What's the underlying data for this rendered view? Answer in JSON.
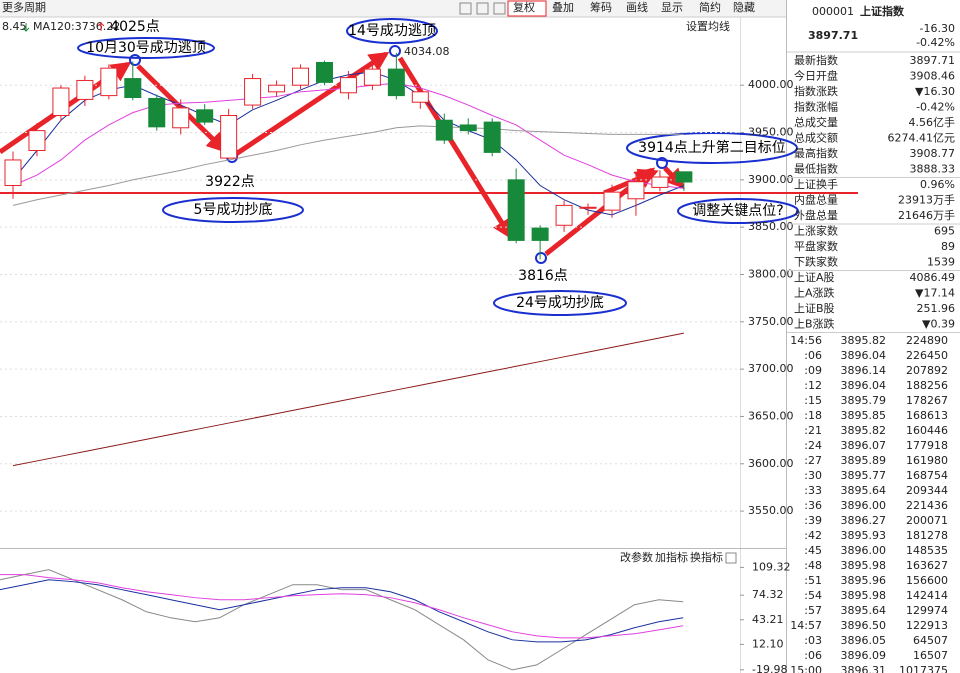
{
  "toolbar": {
    "left": "更多周期",
    "buttons": [
      "复权",
      "叠加",
      "筹码",
      "画线",
      "显示",
      "简约",
      "隐藏"
    ]
  },
  "chart_header": {
    "prefix": "8.45",
    "ma_label": "MA120:3736.22",
    "settings": "设置均线"
  },
  "chart_data": [
    {
      "type": "candlestick",
      "categories": [
        null,
        null,
        null,
        null,
        null,
        null,
        null,
        null,
        null,
        null,
        null,
        null,
        null,
        null,
        null,
        null,
        null,
        null,
        null,
        null,
        null,
        null,
        null,
        null,
        null,
        null,
        null,
        null,
        null
      ],
      "open": [
        3894,
        3931,
        3968,
        3985,
        3989,
        4007,
        3986,
        3955,
        3974,
        3923,
        3979,
        3993,
        4000,
        4024,
        3992,
        4000,
        4017,
        3982,
        3963,
        3958,
        3961,
        3900,
        3849,
        3852,
        3870,
        3868,
        3880,
        3892,
        3908.46
      ],
      "high": [
        3930,
        3960,
        4000,
        4010,
        4022,
        4025,
        3990,
        3985,
        3980,
        3975,
        4012,
        4005,
        4022,
        4026,
        4015,
        4022,
        4034.08,
        3998,
        3970,
        3965,
        3965,
        3912,
        3852,
        3878,
        3875,
        3895,
        3905,
        3910,
        3908.77
      ],
      "low": [
        3880,
        3925,
        3962,
        3978,
        3985,
        3984,
        3952,
        3948,
        3958,
        3922,
        3975,
        3988,
        3996,
        4000,
        3985,
        3995,
        3985,
        3975,
        3938,
        3948,
        3925,
        3833,
        3816,
        3845,
        3863,
        3860,
        3862,
        3888,
        3888.33
      ],
      "close": [
        3921,
        3952,
        3997,
        4005,
        4018,
        3987,
        3956,
        3976,
        3961,
        3968,
        4007,
        4000,
        4018,
        4003,
        4008,
        4017,
        3989,
        3993,
        3942,
        3952,
        3929,
        3836,
        3836,
        3873,
        3871,
        3887,
        3898,
        3903,
        3897.71
      ],
      "up_color": "#e8232a",
      "down_color": "#17893a",
      "series": [
        {
          "color": "#1a2fa0",
          "values": [
            3900,
            3931,
            3963,
            3984,
            3995,
            4000,
            3989,
            3979,
            3968,
            3958,
            3974,
            3984,
            3995,
            4005,
            4011,
            4014,
            4005,
            3989,
            3963,
            3952,
            3942,
            3921,
            3894,
            3879,
            3868,
            3863,
            3873,
            3884,
            3894
          ]
        },
        {
          "color": "#e040e0",
          "values": [
            3894,
            3905,
            3921,
            3942,
            3958,
            3971,
            3979,
            3981,
            3982,
            3984,
            3986,
            3988,
            3993,
            3995,
            3997,
            4000,
            4002,
            3997,
            3989,
            3979,
            3968,
            3958,
            3942,
            3926,
            3916,
            3905,
            3898,
            3894,
            3891
          ]
        },
        {
          "color": "#999999",
          "values": [
            3873,
            3879,
            3884,
            3889,
            3894,
            3900,
            3905,
            3910,
            3916,
            3921,
            3926,
            3931,
            3937,
            3942,
            3946,
            3950,
            3955,
            3957,
            3956,
            3955,
            3954,
            3952,
            3951,
            3950,
            3949,
            3948,
            3948,
            3948,
            3948
          ]
        },
        {
          "color": "#8b1a1a",
          "values": [
            3598,
            3603,
            3608,
            3613,
            3618,
            3623,
            3628,
            3633,
            3638,
            3643,
            3648,
            3653,
            3658,
            3663,
            3668,
            3673,
            3678,
            3683,
            3688,
            3693,
            3698,
            3703,
            3708,
            3713,
            3718,
            3723,
            3728,
            3733,
            3738
          ]
        }
      ],
      "ylim": [
        3511,
        4071
      ],
      "yticks": [
        {
          "value": 4000,
          "label": "4000.00"
        },
        {
          "value": 3950,
          "label": "3950.00"
        },
        {
          "value": 3900,
          "label": "3900.00"
        },
        {
          "value": 3850,
          "label": "3850.00"
        },
        {
          "value": 3800,
          "label": "3800.00"
        },
        {
          "value": 3750,
          "label": "3750.00"
        },
        {
          "value": 3700,
          "label": "3700.00"
        },
        {
          "value": 3650,
          "label": "3650.00"
        },
        {
          "value": 3600,
          "label": "3600.00"
        },
        {
          "value": 3550,
          "label": "3550.00"
        }
      ],
      "grid": true,
      "high_label": "4034.08",
      "annotations": [
        "4025点",
        "10月30号成功逃顶",
        "14号成功逃顶",
        "3922点",
        "5号成功抄底",
        "3816点",
        "24号成功抄底",
        "3914点上升第二目标位",
        "调整关键点位?"
      ]
    },
    {
      "type": "line",
      "buttons": [
        "改参数",
        "加指标",
        "换指标"
      ],
      "series": [
        {
          "color": "#888888",
          "values": [
            93.8,
            100.2,
            106.5,
            93.8,
            81.2,
            68.5,
            53.3,
            45.7,
            40.7,
            45.7,
            62.2,
            74.9,
            87.5,
            87.5,
            81.2,
            81.2,
            68.5,
            55.9,
            36.9,
            17.9,
            -7.4,
            -20.1,
            -13.8,
            5.2,
            24.2,
            43.2,
            62.2,
            68.5,
            66.0
          ]
        },
        {
          "color": "#1a2fa0",
          "values": [
            81.2,
            87.5,
            93.8,
            91.3,
            87.5,
            81.2,
            74.9,
            68.5,
            62.2,
            55.9,
            62.2,
            68.5,
            74.9,
            81.2,
            83.7,
            83.7,
            78.6,
            68.5,
            53.3,
            40.7,
            28.0,
            17.9,
            15.3,
            15.3,
            17.9,
            24.2,
            33.1,
            40.7,
            45.7
          ]
        },
        {
          "color": "#e040e0",
          "values": [
            100.2,
            100.2,
            96.4,
            93.8,
            90.0,
            83.7,
            78.6,
            74.9,
            71.1,
            68.5,
            68.5,
            71.1,
            73.6,
            74.9,
            76.1,
            74.9,
            71.1,
            64.7,
            55.9,
            45.7,
            36.9,
            28.0,
            22.9,
            20.4,
            20.4,
            22.9,
            25.5,
            30.5,
            35.6
          ]
        }
      ],
      "ylim": [
        -24,
        125
      ],
      "yticks": [
        {
          "value": 109.32,
          "label": "109.32"
        },
        {
          "value": 74.32,
          "label": "74.32"
        },
        {
          "value": 43.21,
          "label": "43.21"
        },
        {
          "value": 12.1,
          "label": "12.10"
        },
        {
          "value": -19.98,
          "label": "-19.98"
        }
      ]
    }
  ],
  "quote": {
    "code": "000001",
    "name": "上证指数",
    "price": "3897.71",
    "change": "-16.30",
    "change_pct": "-0.42%"
  },
  "stats": [
    {
      "label": "最新指数",
      "value": "3897.71",
      "color": "#17893a"
    },
    {
      "label": "今日开盘",
      "value": "3908.46",
      "color": "#17893a"
    },
    {
      "label": "指数涨跌",
      "value": "▼16.30",
      "color": "#17893a"
    },
    {
      "label": "指数涨幅",
      "value": "-0.42%",
      "color": "#17893a"
    },
    {
      "label": "总成交量",
      "value": "4.56亿手",
      "color": "#222222"
    },
    {
      "label": "总成交额",
      "value": "6274.41亿元",
      "color": "#1a4fd0"
    },
    {
      "label": "最高指数",
      "value": "3908.77",
      "color": "#17893a"
    },
    {
      "label": "最低指数",
      "value": "3888.33",
      "color": "#17893a"
    },
    {
      "label": "上证换手",
      "value": "0.96%",
      "color": "#222222"
    },
    {
      "label": "内盘总量",
      "value": "23913万手",
      "color": "#17893a"
    },
    {
      "label": "外盘总量",
      "value": "21646万手",
      "color": "#e8232a"
    },
    {
      "label": "上涨家数",
      "value": "695",
      "color": "#222222"
    },
    {
      "label": "平盘家数",
      "value": "89",
      "color": "#222222"
    },
    {
      "label": "下跌家数",
      "value": "1539",
      "color": "#222222"
    },
    {
      "label": "上证A股",
      "value": "4086.49",
      "color": "#17893a"
    },
    {
      "label": "上A涨跌",
      "value": "▼17.14",
      "color": "#17893a"
    },
    {
      "label": "上证B股",
      "value": "251.96",
      "color": "#17893a"
    },
    {
      "label": "上B涨跌",
      "value": "▼0.39",
      "color": "#17893a"
    }
  ],
  "trades": [
    {
      "time": "14:56",
      "price": "3895.82",
      "volume": "224890",
      "color": "#17893a"
    },
    {
      "time": ":06",
      "price": "3896.04",
      "volume": "226450",
      "color": "#e8232a"
    },
    {
      "time": ":09",
      "price": "3896.14",
      "volume": "207892",
      "color": "#e8232a"
    },
    {
      "time": ":12",
      "price": "3896.04",
      "volume": "188256",
      "color": "#17893a"
    },
    {
      "time": ":15",
      "price": "3895.79",
      "volume": "178267",
      "color": "#17893a"
    },
    {
      "time": ":18",
      "price": "3895.85",
      "volume": "168613",
      "color": "#e8232a"
    },
    {
      "time": ":21",
      "price": "3895.82",
      "volume": "160446",
      "color": "#17893a"
    },
    {
      "time": ":24",
      "price": "3896.07",
      "volume": "177918",
      "color": "#e8232a"
    },
    {
      "time": ":27",
      "price": "3895.89",
      "volume": "161980",
      "color": "#17893a"
    },
    {
      "time": ":30",
      "price": "3895.77",
      "volume": "168754",
      "color": "#17893a"
    },
    {
      "time": ":33",
      "price": "3895.64",
      "volume": "209344",
      "color": "#17893a"
    },
    {
      "time": ":36",
      "price": "3896.00",
      "volume": "221436",
      "color": "#e8232a"
    },
    {
      "time": ":39",
      "price": "3896.27",
      "volume": "200071",
      "color": "#e8232a"
    },
    {
      "time": ":42",
      "price": "3895.93",
      "volume": "181278",
      "color": "#17893a"
    },
    {
      "time": ":45",
      "price": "3896.00",
      "volume": "148535",
      "color": "#e8232a"
    },
    {
      "time": ":48",
      "price": "3895.98",
      "volume": "163627",
      "color": "#17893a"
    },
    {
      "time": ":51",
      "price": "3895.96",
      "volume": "156600",
      "color": "#e8232a"
    },
    {
      "time": ":54",
      "price": "3895.98",
      "volume": "142414",
      "color": "#e8232a"
    },
    {
      "time": ":57",
      "price": "3895.64",
      "volume": "129974",
      "color": "#17893a"
    },
    {
      "time": "14:57",
      "price": "3896.50",
      "volume": "122913",
      "color": "#e8232a"
    },
    {
      "time": ":03",
      "price": "3896.05",
      "volume": "64507",
      "color": "#17893a"
    },
    {
      "time": ":06",
      "price": "3896.09",
      "volume": "16507",
      "color": "#e8232a"
    },
    {
      "time": "15:00",
      "price": "3896.31",
      "volume": "1017375",
      "color": "#e8232a"
    }
  ]
}
